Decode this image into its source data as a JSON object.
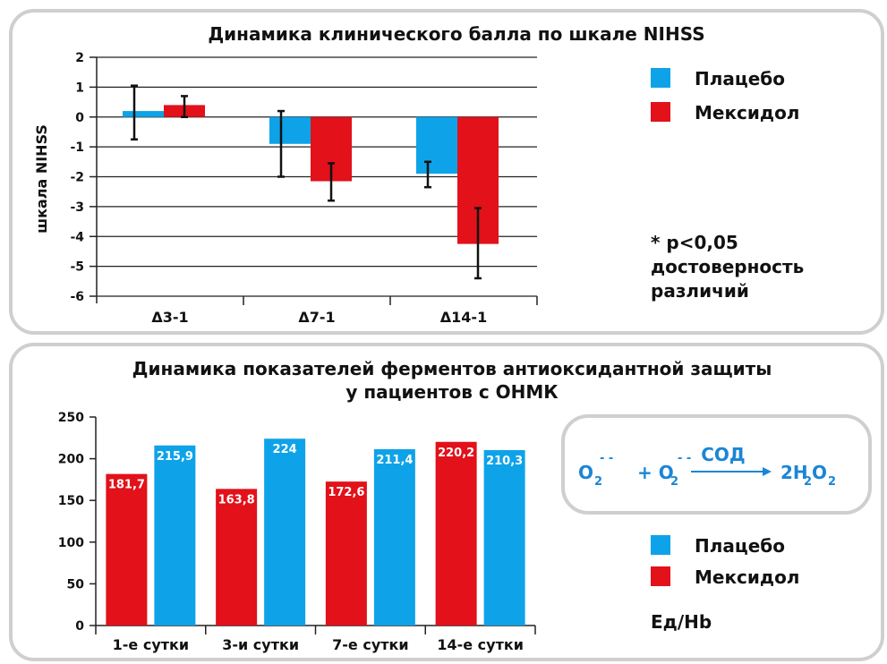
{
  "colors": {
    "placebo": "#0ea3e8",
    "mexidol": "#e2111a",
    "grid": "#222222",
    "border": "#cfcfcf",
    "formula": "#1a86d6"
  },
  "chart_data": [
    {
      "type": "bar",
      "title": "Динамика клинического балла по шкале NIHSS",
      "ylabel": "шкала NIHSS",
      "xlabel": "",
      "categories": [
        "Δ3-1",
        "Δ7-1",
        "Δ14-1"
      ],
      "yticks": [
        "2",
        "1",
        "0",
        "-1",
        "-2",
        "-3",
        "-4",
        "-5",
        "-6"
      ],
      "ylim": [
        -6,
        2
      ],
      "grid": true,
      "legend_position": "right",
      "series": [
        {
          "name": "Плацебо",
          "values": [
            0.2,
            -0.9,
            -1.9
          ],
          "error_low": [
            -0.75,
            -2.0,
            -2.35
          ],
          "error_high": [
            1.05,
            0.2,
            -1.5
          ]
        },
        {
          "name": "Мексидол",
          "values": [
            0.4,
            -2.15,
            -4.25
          ],
          "error_low": [
            0.0,
            -2.8,
            -5.4
          ],
          "error_high": [
            0.7,
            -1.55,
            -3.05
          ]
        }
      ],
      "annotation": [
        "* p<0,05",
        "достоверность",
        "различий"
      ]
    },
    {
      "type": "bar",
      "title": "Динамика показателей ферментов антиоксидантной защиты",
      "subtitle": "у пациентов с ОНМК",
      "xlabel": "",
      "ylabel": "",
      "categories": [
        "1-е сутки",
        "3-и сутки",
        "7-е сутки",
        "14-е сутки"
      ],
      "yticks": [
        "250",
        "200",
        "150",
        "100",
        "50",
        "0"
      ],
      "ylim": [
        0,
        250
      ],
      "grid": false,
      "legend_position": "right",
      "series": [
        {
          "name": "Мексидол",
          "values": [
            181.7,
            163.8,
            172.6,
            220.2
          ],
          "labels": [
            "181,7",
            "163,8",
            "172,6",
            "220,2"
          ]
        },
        {
          "name": "Плацебо",
          "values": [
            215.9,
            224,
            211.4,
            210.3
          ],
          "labels": [
            "215,9",
            "224",
            "211,4",
            "210,3"
          ]
        }
      ],
      "unit_label": "Ед/Hb"
    }
  ],
  "legend": {
    "placebo": "Плацебо",
    "mexidol": "Мексидол"
  },
  "formula": {
    "o2_a": "O",
    "sub_a": "2",
    "sup_a": "- -",
    "plus_o2": "+ O",
    "sub_b": "2",
    "sup_b": "- -",
    "enzyme": "СОД",
    "product_a": "2H",
    "sub_c": "2",
    "product_b": "O",
    "sub_d": "2"
  }
}
